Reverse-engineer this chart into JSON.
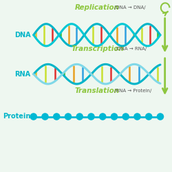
{
  "bg_color": "#eef7f0",
  "dna_color1": "#00b4c8",
  "dna_color2": "#00c8d4",
  "rna_color1": "#00b4c8",
  "rna_color2": "#80d8e8",
  "bar_colors": [
    "#e8c030",
    "#c8e030",
    "#e03030",
    "#30c030",
    "#e8a020",
    "#30a0e0"
  ],
  "protein_color": "#00b8d4",
  "arrow_color": "#8dc63f",
  "text_color_main": "#8dc63f",
  "label_color": "#00b4c8",
  "title1": "Replication",
  "sub1": "/DNA → DNA/",
  "title2": "Transcription",
  "sub2": "/DNA → RNA/",
  "title3": "Translation",
  "sub3": "/RNA → Protein/",
  "label_dna": "DNA",
  "label_rna": "RNA",
  "label_protein": "Protein",
  "fig_width": 2.5,
  "fig_height": 2.5,
  "dpi": 100
}
